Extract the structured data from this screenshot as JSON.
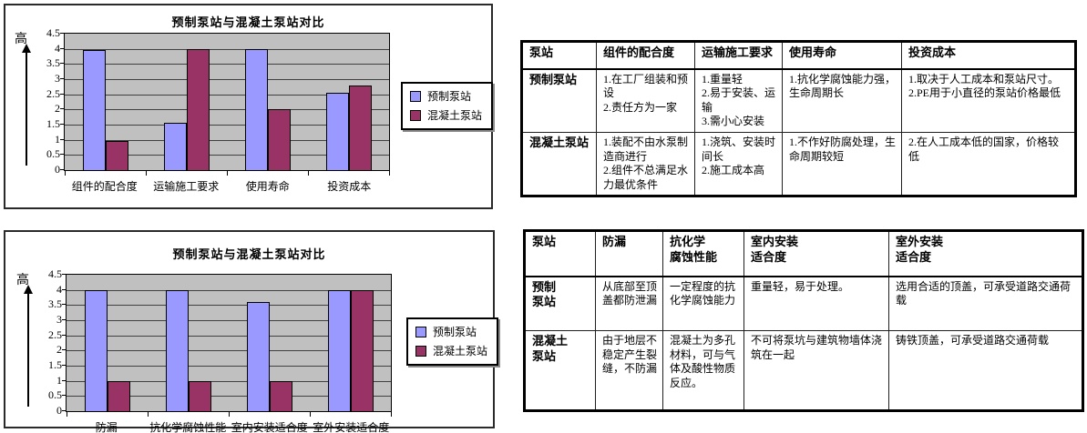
{
  "colors": {
    "series1": "#9999ff",
    "series2": "#993366",
    "plot_background": "#c0c0c0",
    "gridline": "#404040"
  },
  "chart_data": [
    {
      "type": "bar",
      "title": "预制泵站与混凝土泵站对比",
      "ylabel": "高",
      "xlabel": "",
      "categories": [
        "组件的配合度",
        "运输施工要求",
        "使用寿命",
        "投资成本"
      ],
      "series": [
        {
          "name": "预制泵站",
          "color": "#9999ff",
          "values": [
            3.95,
            1.55,
            4,
            2.55
          ]
        },
        {
          "name": "混凝土泵站",
          "color": "#993366",
          "values": [
            0.95,
            4,
            2,
            2.8
          ]
        }
      ],
      "ylim": [
        0,
        4.5
      ],
      "ytick_step": 0.5,
      "yticks": [
        "4.5",
        "4",
        "3.5",
        "3",
        "2.5",
        "2",
        "1.5",
        "1",
        "0.5",
        "0"
      ],
      "grid": true,
      "legend_position": "right",
      "plot_bg": "#c0c0c0"
    },
    {
      "type": "bar",
      "title": "预制泵站与混凝土泵站对比",
      "ylabel": "高",
      "xlabel": "",
      "categories": [
        "防漏",
        "抗化学腐蚀性能",
        "室内安装适合度",
        "室外安装适合度"
      ],
      "series": [
        {
          "name": "预制泵站",
          "color": "#9999ff",
          "values": [
            4,
            4,
            3.6,
            4
          ]
        },
        {
          "name": "混凝土泵站",
          "color": "#993366",
          "values": [
            1,
            1,
            1,
            4
          ]
        }
      ],
      "ylim": [
        0,
        4.5
      ],
      "ytick_step": 0.5,
      "yticks": [
        "4.5",
        "4",
        "3.5",
        "3",
        "2.5",
        "2",
        "1.5",
        "1",
        "0.5",
        "0"
      ],
      "grid": true,
      "legend_position": "right",
      "plot_bg": "#c0c0c0"
    }
  ],
  "tables": [
    {
      "headers": [
        "泵站",
        "组件的配合度",
        "运输施工要求",
        "使用寿命",
        "投资成本"
      ],
      "rows": [
        {
          "label": "预制泵站",
          "cells": [
            "1.在工厂组装和预设\n2.责任方为一家",
            "1.重量轻\n2.易于安装、运输\n3.需小心安装",
            "1.抗化学腐蚀能力强，生命周期长",
            "1.取决于人工成本和泵站尺寸。\n2.PE用于小直径的泵站价格最低"
          ]
        },
        {
          "label": "混凝土泵站",
          "cells": [
            "1.装配不由水泵制造商进行\n2.组件不总满足水力最优条件",
            "1.浇筑、安装时间长\n2.施工成本高",
            "1.不作好防腐处理，生命周期较短",
            "2.在人工成本低的国家，价格较低"
          ]
        }
      ]
    },
    {
      "headers": [
        "泵站",
        "防漏",
        "抗化学\n腐蚀性能",
        "室内安装\n适合度",
        "室外安装\n适合度"
      ],
      "rows": [
        {
          "label": "预制\n泵站",
          "cells": [
            "从底部至顶盖都防泄漏",
            "一定程度的抗化学腐蚀能力",
            "重量轻，易于处理。",
            "选用合适的顶盖，可承受道路交通荷载"
          ]
        },
        {
          "label": "混凝土\n泵站",
          "cells": [
            "由于地层不稳定产生裂缝，不防漏",
            "混凝土为多孔材料，可与气体及酸性物质反应。",
            "不可将泵坑与建筑物墙体浇筑在一起",
            "铸铁顶盖，可承受道路交通荷载"
          ]
        }
      ]
    }
  ]
}
